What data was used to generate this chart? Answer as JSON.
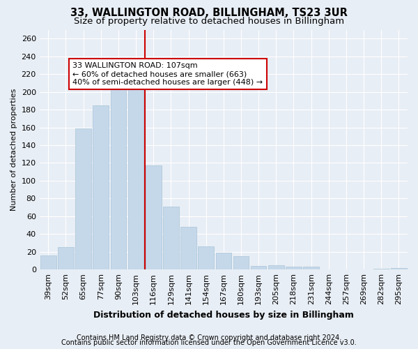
{
  "title": "33, WALLINGTON ROAD, BILLINGHAM, TS23 3UR",
  "subtitle": "Size of property relative to detached houses in Billingham",
  "xlabel": "Distribution of detached houses by size in Billingham",
  "ylabel": "Number of detached properties",
  "categories": [
    "39sqm",
    "52sqm",
    "65sqm",
    "77sqm",
    "90sqm",
    "103sqm",
    "116sqm",
    "129sqm",
    "141sqm",
    "154sqm",
    "167sqm",
    "180sqm",
    "193sqm",
    "205sqm",
    "218sqm",
    "231sqm",
    "244sqm",
    "257sqm",
    "269sqm",
    "282sqm",
    "295sqm"
  ],
  "values": [
    16,
    25,
    159,
    185,
    210,
    215,
    117,
    71,
    48,
    26,
    19,
    15,
    4,
    5,
    3,
    3,
    0,
    0,
    0,
    1,
    2
  ],
  "bar_color": "#c5d8ea",
  "bar_edge_color": "#a8c4d8",
  "vline_x_idx": 5,
  "vline_color": "#cc0000",
  "annotation_line1": "33 WALLINGTON ROAD: 107sqm",
  "annotation_line2": "← 60% of detached houses are smaller (663)",
  "annotation_line3": "40% of semi-detached houses are larger (448) →",
  "annotation_box_facecolor": "white",
  "annotation_box_edgecolor": "#cc0000",
  "bg_color": "#e8eef5",
  "plot_bg_color": "#e8eef5",
  "grid_color": "white",
  "ylim": [
    0,
    270
  ],
  "yticks": [
    0,
    20,
    40,
    60,
    80,
    100,
    120,
    140,
    160,
    180,
    200,
    220,
    240,
    260
  ],
  "footer_line1": "Contains HM Land Registry data © Crown copyright and database right 2024.",
  "footer_line2": "Contains public sector information licensed under the Open Government Licence v3.0.",
  "title_fontsize": 10.5,
  "subtitle_fontsize": 9.5,
  "xlabel_fontsize": 9,
  "ylabel_fontsize": 8,
  "tick_fontsize": 8,
  "annotation_fontsize": 8,
  "footer_fontsize": 7
}
